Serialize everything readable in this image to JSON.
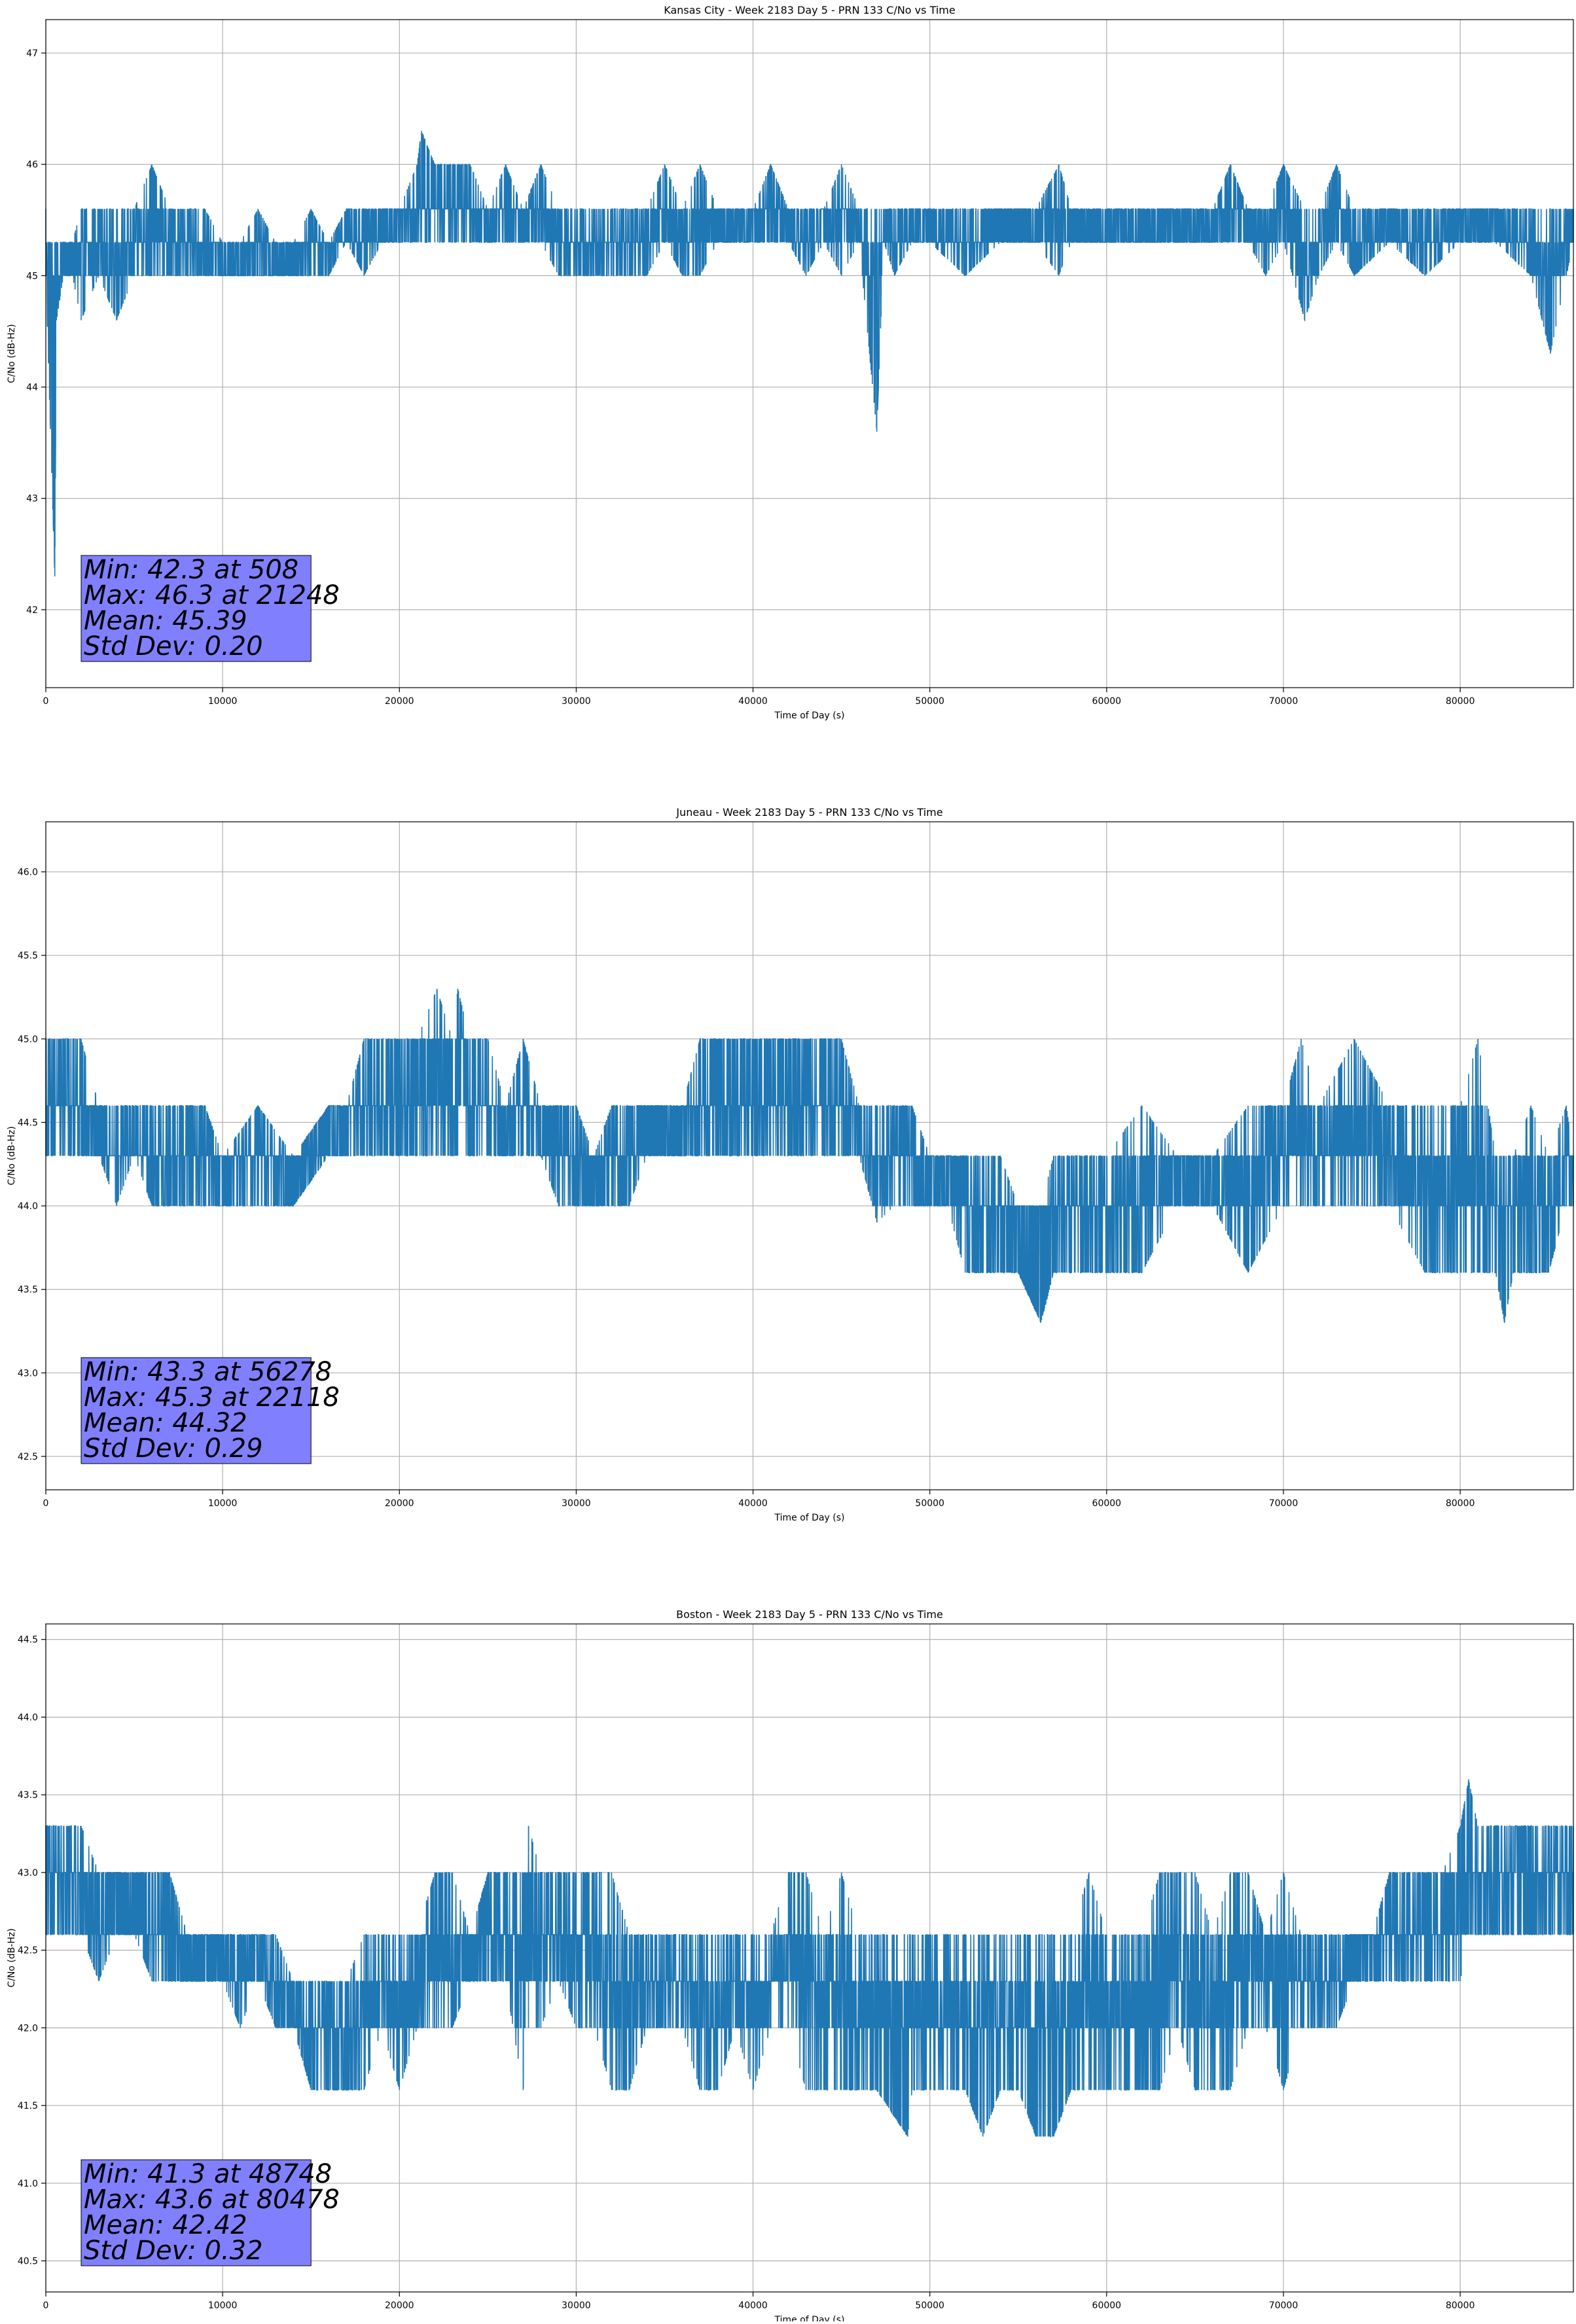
{
  "chart_data": [
    {
      "type": "line",
      "title": "Kansas City - Week 2183 Day 5 - PRN 133 C/No vs Time",
      "xlabel": "Time of Day (s)",
      "ylabel": "C/No (dB-Hz)",
      "xlim": [
        0,
        86400
      ],
      "ylim": [
        41.3,
        47.3
      ],
      "xticks": [
        0,
        10000,
        20000,
        30000,
        40000,
        50000,
        60000,
        70000,
        80000
      ],
      "yticks": [
        42,
        43,
        44,
        45,
        46,
        47
      ],
      "ytick_decimals": 0,
      "grid": true,
      "color": "#1f77b4",
      "stats_box_color": "#8080ff",
      "stats": [
        "Min: 42.3 at 508",
        "Max: 46.3 at 21248",
        "Mean: 45.39",
        "Std Dev: 0.20"
      ],
      "series": [
        {
          "levels": [
            45.0,
            45.3,
            45.6
          ],
          "x": [
            0,
            508,
            600,
            1000,
            1500,
            2000,
            3000,
            4000,
            5000,
            6000,
            7000,
            8000,
            9000,
            10000,
            11000,
            12000,
            13000,
            14000,
            15000,
            16000,
            17000,
            18000,
            19000,
            20000,
            21000,
            21248,
            22000,
            23000,
            24000,
            25000,
            26000,
            27000,
            28000,
            29000,
            30000,
            31000,
            32000,
            33000,
            34000,
            35000,
            36000,
            37000,
            38000,
            39000,
            40000,
            41000,
            42000,
            43000,
            44000,
            45000,
            46000,
            47000,
            47400,
            48000,
            49000,
            50000,
            52000,
            54000,
            56000,
            57300,
            58000,
            60000,
            62000,
            64000,
            66000,
            67000,
            68000,
            69000,
            70000,
            71200,
            72000,
            73000,
            74000,
            76000,
            78000,
            80000,
            82000,
            84000,
            85100,
            86000,
            86400
          ],
          "low": [
            45.0,
            42.3,
            44.6,
            45.0,
            45.0,
            44.6,
            45.0,
            44.6,
            45.0,
            45.0,
            45.0,
            45.0,
            45.0,
            45.0,
            45.0,
            45.0,
            45.0,
            45.0,
            45.0,
            45.0,
            45.3,
            45.0,
            45.3,
            45.3,
            45.3,
            45.3,
            45.3,
            45.3,
            45.3,
            45.3,
            45.3,
            45.3,
            45.3,
            45.0,
            45.0,
            45.0,
            45.0,
            45.0,
            45.0,
            45.3,
            45.0,
            45.0,
            45.3,
            45.3,
            45.3,
            45.3,
            45.3,
            45.0,
            45.3,
            45.0,
            45.3,
            43.6,
            45.3,
            45.0,
            45.3,
            45.3,
            45.0,
            45.3,
            45.3,
            45.0,
            45.3,
            45.3,
            45.3,
            45.3,
            45.3,
            45.3,
            45.3,
            45.0,
            45.3,
            44.6,
            45.0,
            45.3,
            45.0,
            45.3,
            45.0,
            45.3,
            45.3,
            45.0,
            44.3,
            45.0,
            45.3
          ],
          "high": [
            45.6,
            45.3,
            45.3,
            45.3,
            45.3,
            45.6,
            45.6,
            45.6,
            45.6,
            46.0,
            45.6,
            45.6,
            45.6,
            45.3,
            45.3,
            45.6,
            45.3,
            45.3,
            45.6,
            45.3,
            45.6,
            45.6,
            45.6,
            45.6,
            46.0,
            46.3,
            46.0,
            46.0,
            46.0,
            45.6,
            46.0,
            45.6,
            46.0,
            45.6,
            45.6,
            45.6,
            45.6,
            45.6,
            45.6,
            46.0,
            45.6,
            46.0,
            45.6,
            45.6,
            45.6,
            46.0,
            45.6,
            45.6,
            45.6,
            46.0,
            45.6,
            45.6,
            45.6,
            45.6,
            45.6,
            45.6,
            45.6,
            45.6,
            45.6,
            46.0,
            45.6,
            45.6,
            45.6,
            45.6,
            45.6,
            46.0,
            45.6,
            45.6,
            46.0,
            45.6,
            45.6,
            46.0,
            45.6,
            45.6,
            45.6,
            45.6,
            45.6,
            45.6,
            45.6,
            45.6,
            45.6
          ]
        }
      ]
    },
    {
      "type": "line",
      "title": "Juneau - Week 2183 Day 5 - PRN 133 C/No vs Time",
      "xlabel": "Time of Day (s)",
      "ylabel": "C/No (dB-Hz)",
      "xlim": [
        0,
        86400
      ],
      "ylim": [
        42.3,
        46.3
      ],
      "xticks": [
        0,
        10000,
        20000,
        30000,
        40000,
        50000,
        60000,
        70000,
        80000
      ],
      "yticks": [
        42.5,
        43.0,
        43.5,
        44.0,
        44.5,
        45.0,
        45.5,
        46.0
      ],
      "ytick_decimals": 1,
      "grid": true,
      "color": "#1f77b4",
      "stats_box_color": "#8080ff",
      "stats": [
        "Min: 43.3 at 56278",
        "Max: 45.3 at 22118",
        "Mean: 44.32",
        "Std Dev: 0.29"
      ],
      "series": [
        {
          "levels": [
            44.0,
            44.3,
            44.6,
            45.0
          ],
          "x": [
            0,
            1000,
            2000,
            3000,
            4000,
            5000,
            6000,
            7000,
            8000,
            9000,
            10000,
            12000,
            14000,
            16000,
            17000,
            18000,
            19000,
            20000,
            21000,
            22118,
            23000,
            23300,
            24000,
            25000,
            26000,
            27000,
            28000,
            29000,
            30000,
            31000,
            32000,
            33000,
            34000,
            35000,
            36000,
            37000,
            38000,
            39000,
            40000,
            41000,
            42000,
            43000,
            44000,
            45000,
            46000,
            47000,
            48000,
            49000,
            50000,
            51000,
            52000,
            53000,
            54000,
            55000,
            56278,
            57000,
            58000,
            60000,
            62000,
            64000,
            66000,
            68000,
            70000,
            71000,
            72000,
            74000,
            76000,
            78000,
            80000,
            81000,
            82000,
            82500,
            83000,
            84000,
            85000,
            86000,
            86400
          ],
          "low": [
            44.3,
            44.3,
            44.3,
            44.3,
            44.0,
            44.3,
            44.0,
            44.0,
            44.0,
            44.0,
            44.0,
            44.0,
            44.0,
            44.3,
            44.3,
            44.3,
            44.3,
            44.3,
            44.3,
            44.3,
            44.3,
            44.3,
            44.3,
            44.3,
            44.3,
            44.3,
            44.3,
            44.0,
            44.0,
            44.0,
            44.0,
            44.0,
            44.3,
            44.3,
            44.3,
            44.3,
            44.3,
            44.3,
            44.3,
            44.3,
            44.3,
            44.3,
            44.3,
            44.3,
            44.3,
            43.9,
            44.0,
            44.0,
            44.0,
            44.0,
            43.6,
            43.6,
            43.6,
            43.6,
            43.3,
            43.6,
            43.6,
            43.6,
            43.6,
            44.0,
            44.0,
            43.6,
            44.0,
            44.0,
            44.0,
            44.0,
            44.0,
            43.6,
            43.6,
            43.6,
            43.6,
            43.3,
            43.6,
            43.6,
            43.6,
            44.0,
            44.0
          ],
          "high": [
            45.0,
            45.0,
            45.0,
            44.6,
            44.6,
            44.6,
            44.6,
            44.6,
            44.6,
            44.6,
            44.3,
            44.6,
            44.3,
            44.6,
            44.6,
            45.0,
            45.0,
            45.0,
            45.0,
            45.3,
            45.0,
            45.3,
            45.0,
            45.0,
            44.6,
            45.0,
            44.6,
            44.6,
            44.6,
            44.3,
            44.6,
            44.6,
            44.6,
            44.6,
            44.6,
            45.0,
            45.0,
            45.0,
            45.0,
            45.0,
            45.0,
            45.0,
            45.0,
            45.0,
            44.6,
            44.6,
            44.6,
            44.6,
            44.3,
            44.3,
            44.3,
            44.3,
            44.3,
            44.0,
            44.0,
            44.3,
            44.3,
            44.3,
            44.6,
            44.3,
            44.3,
            44.6,
            44.6,
            45.0,
            44.6,
            45.0,
            44.6,
            44.6,
            44.6,
            45.0,
            44.3,
            44.3,
            44.3,
            44.6,
            44.3,
            44.6,
            44.3
          ]
        }
      ]
    },
    {
      "type": "line",
      "title": "Boston - Week 2183 Day 5 - PRN 133 C/No vs Time",
      "xlabel": "Time of Day (s)",
      "ylabel": "C/No (dB-Hz)",
      "xlim": [
        0,
        86400
      ],
      "ylim": [
        40.3,
        44.6
      ],
      "xticks": [
        0,
        10000,
        20000,
        30000,
        40000,
        50000,
        60000,
        70000,
        80000
      ],
      "yticks": [
        40.5,
        41.0,
        41.5,
        42.0,
        42.5,
        43.0,
        43.5,
        44.0,
        44.5
      ],
      "ytick_decimals": 1,
      "grid": true,
      "color": "#1f77b4",
      "stats_box_color": "#8080ff",
      "stats": [
        "Min: 41.3 at 48748",
        "Max: 43.6 at 80478",
        "Mean: 42.42",
        "Std Dev: 0.32"
      ],
      "series": [
        {
          "levels": [
            42.0,
            42.3,
            42.6,
            43.0
          ],
          "x": [
            0,
            1000,
            2000,
            3000,
            4000,
            5000,
            6000,
            7000,
            8000,
            9000,
            10000,
            11000,
            12000,
            13000,
            14000,
            15000,
            16000,
            17000,
            18000,
            19000,
            20000,
            21000,
            22000,
            23000,
            24000,
            25000,
            26000,
            27000,
            27300,
            28000,
            29000,
            30000,
            31000,
            32000,
            33000,
            34000,
            35000,
            36000,
            37000,
            38000,
            39000,
            40000,
            41000,
            42000,
            43000,
            44000,
            45000,
            46000,
            47000,
            48748,
            49000,
            50000,
            51000,
            52000,
            53000,
            54000,
            55000,
            56000,
            57000,
            58000,
            59000,
            60000,
            61000,
            62000,
            63000,
            64000,
            65000,
            66000,
            67000,
            68000,
            69000,
            70000,
            71000,
            72000,
            73000,
            74000,
            75000,
            76000,
            77000,
            78000,
            79000,
            80000,
            80478,
            81000,
            82000,
            83000,
            84000,
            85000,
            86000,
            86400
          ],
          "low": [
            42.6,
            42.6,
            42.6,
            42.3,
            42.6,
            42.6,
            42.3,
            42.3,
            42.3,
            42.3,
            42.3,
            42.0,
            42.3,
            42.0,
            42.0,
            41.6,
            41.6,
            41.6,
            41.6,
            42.0,
            41.6,
            42.0,
            42.0,
            42.0,
            42.3,
            42.3,
            42.3,
            41.6,
            42.0,
            42.0,
            42.3,
            42.0,
            42.0,
            41.6,
            41.6,
            42.0,
            42.0,
            42.0,
            41.6,
            41.6,
            42.0,
            41.6,
            42.0,
            42.0,
            41.6,
            41.6,
            41.6,
            41.6,
            41.6,
            41.3,
            41.6,
            41.6,
            41.6,
            41.6,
            41.3,
            41.6,
            41.6,
            41.3,
            41.3,
            41.6,
            41.6,
            41.6,
            41.6,
            41.6,
            41.6,
            42.0,
            41.6,
            41.6,
            41.6,
            42.0,
            42.0,
            41.6,
            42.0,
            42.0,
            42.0,
            42.3,
            42.3,
            42.3,
            42.3,
            42.3,
            42.3,
            42.3,
            42.6,
            42.6,
            42.6,
            42.6,
            42.6,
            42.6,
            42.6,
            42.6
          ],
          "high": [
            43.3,
            43.3,
            43.3,
            43.0,
            43.0,
            43.0,
            43.0,
            43.0,
            42.6,
            42.6,
            42.6,
            42.6,
            42.6,
            42.6,
            42.3,
            42.3,
            42.3,
            42.3,
            42.6,
            42.6,
            42.6,
            42.6,
            43.0,
            43.0,
            42.6,
            43.0,
            43.0,
            43.0,
            43.3,
            43.0,
            43.0,
            43.0,
            43.0,
            43.0,
            42.6,
            42.6,
            42.6,
            42.6,
            42.6,
            42.6,
            42.6,
            42.6,
            42.6,
            43.0,
            43.0,
            42.6,
            43.0,
            42.6,
            42.6,
            42.6,
            42.6,
            42.6,
            42.6,
            42.6,
            42.6,
            42.6,
            42.6,
            42.6,
            42.6,
            42.6,
            43.0,
            42.6,
            42.6,
            42.6,
            43.0,
            43.0,
            43.0,
            42.6,
            43.0,
            43.0,
            42.6,
            43.0,
            42.6,
            42.6,
            42.6,
            42.6,
            42.6,
            43.0,
            43.0,
            43.0,
            43.0,
            43.3,
            43.6,
            43.3,
            43.3,
            43.3,
            43.3,
            43.3,
            43.3,
            43.3
          ]
        }
      ]
    }
  ]
}
